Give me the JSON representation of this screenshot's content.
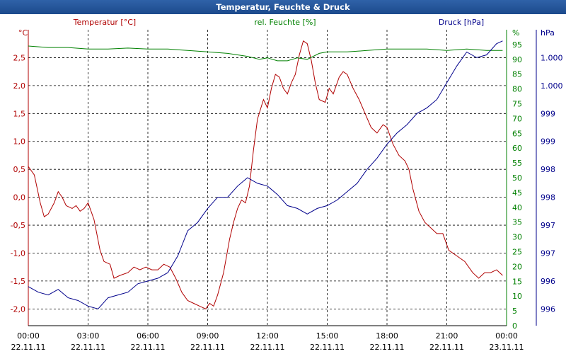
{
  "chart_data": {
    "type": "line",
    "title": "Temperatur, Feuchte & Druck",
    "axes": {
      "temperature": {
        "unit_label": "°C",
        "legend": "Temperatur [°C]",
        "range": [
          -2.3,
          3.0
        ],
        "ticks": [
          "2,5",
          "2,0",
          "1,5",
          "1,0",
          "0,5",
          "0,0",
          "-0,5",
          "-1,0",
          "-1,5",
          "-2,0"
        ],
        "tick_values": [
          2.5,
          2.0,
          1.5,
          1.0,
          0.5,
          0.0,
          -0.5,
          -1.0,
          -1.5,
          -2.0
        ]
      },
      "humidity": {
        "unit_label": "%",
        "legend": "rel. Feuchte [%]",
        "range": [
          0,
          100
        ],
        "ticks": [
          "95",
          "90",
          "85",
          "80",
          "75",
          "70",
          "65",
          "60",
          "55",
          "50",
          "45",
          "40",
          "35",
          "30",
          "25",
          "20",
          "15",
          "10",
          "5",
          "0"
        ],
        "tick_values": [
          95,
          90,
          85,
          80,
          75,
          70,
          65,
          60,
          55,
          50,
          45,
          40,
          35,
          30,
          25,
          20,
          15,
          10,
          5,
          0
        ]
      },
      "pressure": {
        "unit_label": "hPa",
        "legend": "Druck [hPa]",
        "ticks": [
          "1.000",
          "1.000",
          "999",
          "999",
          "998",
          "998",
          "997",
          "997",
          "996",
          "996"
        ]
      }
    },
    "x_ticks": [
      {
        "time": "00:00",
        "date": "22.11.11"
      },
      {
        "time": "03:00",
        "date": "22.11.11"
      },
      {
        "time": "06:00",
        "date": "22.11.11"
      },
      {
        "time": "09:00",
        "date": "22.11.11"
      },
      {
        "time": "12:00",
        "date": "22.11.11"
      },
      {
        "time": "15:00",
        "date": "22.11.11"
      },
      {
        "time": "18:00",
        "date": "22.11.11"
      },
      {
        "time": "21:00",
        "date": "22.11.11"
      },
      {
        "time": "00:00",
        "date": "23.11.11"
      }
    ],
    "x_range_hours": [
      0,
      24
    ],
    "grid": true,
    "series": [
      {
        "name": "Temperatur [°C]",
        "axis": "temperature",
        "color": "#b00000",
        "points": [
          [
            0,
            0.55
          ],
          [
            0.3,
            0.4
          ],
          [
            0.6,
            -0.1
          ],
          [
            0.8,
            -0.35
          ],
          [
            1,
            -0.3
          ],
          [
            1.3,
            -0.1
          ],
          [
            1.5,
            0.1
          ],
          [
            1.7,
            0
          ],
          [
            1.9,
            -0.15
          ],
          [
            2.2,
            -0.2
          ],
          [
            2.4,
            -0.15
          ],
          [
            2.6,
            -0.25
          ],
          [
            2.8,
            -0.2
          ],
          [
            3,
            -0.1
          ],
          [
            3.3,
            -0.4
          ],
          [
            3.6,
            -0.95
          ],
          [
            3.8,
            -1.15
          ],
          [
            4.1,
            -1.2
          ],
          [
            4.3,
            -1.45
          ],
          [
            4.6,
            -1.4
          ],
          [
            5,
            -1.35
          ],
          [
            5.3,
            -1.25
          ],
          [
            5.6,
            -1.3
          ],
          [
            5.9,
            -1.25
          ],
          [
            6.2,
            -1.3
          ],
          [
            6.5,
            -1.3
          ],
          [
            6.8,
            -1.2
          ],
          [
            7.1,
            -1.25
          ],
          [
            7.4,
            -1.45
          ],
          [
            7.7,
            -1.7
          ],
          [
            8,
            -1.85
          ],
          [
            8.3,
            -1.9
          ],
          [
            8.6,
            -1.95
          ],
          [
            8.9,
            -2.0
          ],
          [
            9.1,
            -1.9
          ],
          [
            9.3,
            -1.95
          ],
          [
            9.5,
            -1.75
          ],
          [
            9.8,
            -1.35
          ],
          [
            10.1,
            -0.75
          ],
          [
            10.3,
            -0.45
          ],
          [
            10.5,
            -0.2
          ],
          [
            10.7,
            -0.05
          ],
          [
            10.9,
            -0.1
          ],
          [
            11.1,
            0.2
          ],
          [
            11.3,
            0.85
          ],
          [
            11.5,
            1.4
          ],
          [
            11.8,
            1.75
          ],
          [
            12,
            1.6
          ],
          [
            12.2,
            1.95
          ],
          [
            12.4,
            2.2
          ],
          [
            12.6,
            2.15
          ],
          [
            12.8,
            1.95
          ],
          [
            13,
            1.85
          ],
          [
            13.2,
            2.05
          ],
          [
            13.4,
            2.2
          ],
          [
            13.6,
            2.55
          ],
          [
            13.8,
            2.8
          ],
          [
            14,
            2.75
          ],
          [
            14.2,
            2.45
          ],
          [
            14.4,
            2.05
          ],
          [
            14.6,
            1.75
          ],
          [
            14.9,
            1.7
          ],
          [
            15.1,
            1.95
          ],
          [
            15.3,
            1.85
          ],
          [
            15.6,
            2.15
          ],
          [
            15.8,
            2.25
          ],
          [
            16,
            2.2
          ],
          [
            16.3,
            1.95
          ],
          [
            16.6,
            1.75
          ],
          [
            16.9,
            1.5
          ],
          [
            17.2,
            1.25
          ],
          [
            17.5,
            1.15
          ],
          [
            17.8,
            1.3
          ],
          [
            18,
            1.25
          ],
          [
            18.3,
            0.95
          ],
          [
            18.6,
            0.75
          ],
          [
            18.9,
            0.65
          ],
          [
            19.1,
            0.5
          ],
          [
            19.3,
            0.15
          ],
          [
            19.6,
            -0.25
          ],
          [
            19.9,
            -0.45
          ],
          [
            20.2,
            -0.55
          ],
          [
            20.5,
            -0.65
          ],
          [
            20.8,
            -0.65
          ],
          [
            21.1,
            -0.95
          ],
          [
            21.5,
            -1.05
          ],
          [
            21.9,
            -1.15
          ],
          [
            22.3,
            -1.35
          ],
          [
            22.6,
            -1.45
          ],
          [
            22.9,
            -1.35
          ],
          [
            23.2,
            -1.35
          ],
          [
            23.5,
            -1.3
          ],
          [
            23.8,
            -1.4
          ]
        ]
      },
      {
        "name": "rel. Feuchte [%]",
        "axis": "humidity",
        "color": "#008000",
        "points": [
          [
            0,
            94.5
          ],
          [
            1,
            94
          ],
          [
            2,
            94
          ],
          [
            3,
            93.5
          ],
          [
            4,
            93.5
          ],
          [
            5,
            93.8
          ],
          [
            6,
            93.5
          ],
          [
            7,
            93.5
          ],
          [
            8,
            93
          ],
          [
            9,
            92.5
          ],
          [
            10,
            92
          ],
          [
            11,
            91
          ],
          [
            11.6,
            90
          ],
          [
            12,
            90.5
          ],
          [
            12.5,
            89.5
          ],
          [
            13,
            89.5
          ],
          [
            13.5,
            90.5
          ],
          [
            14,
            90
          ],
          [
            14.6,
            92
          ],
          [
            15,
            92.5
          ],
          [
            16,
            92.5
          ],
          [
            17,
            93
          ],
          [
            18,
            93.5
          ],
          [
            19,
            93.5
          ],
          [
            20,
            93.5
          ],
          [
            21,
            93
          ],
          [
            22,
            93.5
          ],
          [
            23,
            93
          ],
          [
            23.8,
            93
          ]
        ]
      },
      {
        "name": "Druck [hPa]",
        "axis": "pressure",
        "color": "#00008b",
        "points": [
          [
            0,
            -1.6
          ],
          [
            0.5,
            -1.7
          ],
          [
            1,
            -1.75
          ],
          [
            1.5,
            -1.65
          ],
          [
            2,
            -1.8
          ],
          [
            2.5,
            -1.85
          ],
          [
            3,
            -1.95
          ],
          [
            3.5,
            -2.0
          ],
          [
            4,
            -1.8
          ],
          [
            4.5,
            -1.75
          ],
          [
            5,
            -1.7
          ],
          [
            5.5,
            -1.55
          ],
          [
            6,
            -1.5
          ],
          [
            6.5,
            -1.45
          ],
          [
            7,
            -1.35
          ],
          [
            7.5,
            -1.05
          ],
          [
            8,
            -0.6
          ],
          [
            8.5,
            -0.45
          ],
          [
            9,
            -0.2
          ],
          [
            9.5,
            0.0
          ],
          [
            10,
            0.0
          ],
          [
            10.5,
            0.2
          ],
          [
            11,
            0.35
          ],
          [
            11.5,
            0.25
          ],
          [
            12,
            0.2
          ],
          [
            12.5,
            0.05
          ],
          [
            13,
            -0.15
          ],
          [
            13.5,
            -0.2
          ],
          [
            14,
            -0.3
          ],
          [
            14.5,
            -0.2
          ],
          [
            15,
            -0.15
          ],
          [
            15.5,
            -0.05
          ],
          [
            16,
            0.1
          ],
          [
            16.5,
            0.25
          ],
          [
            17,
            0.5
          ],
          [
            17.5,
            0.7
          ],
          [
            18,
            0.95
          ],
          [
            18.5,
            1.15
          ],
          [
            19,
            1.3
          ],
          [
            19.5,
            1.5
          ],
          [
            20,
            1.6
          ],
          [
            20.5,
            1.75
          ],
          [
            21,
            2.05
          ],
          [
            21.5,
            2.35
          ],
          [
            22,
            2.6
          ],
          [
            22.5,
            2.5
          ],
          [
            23,
            2.55
          ],
          [
            23.5,
            2.75
          ],
          [
            23.8,
            2.8
          ]
        ]
      }
    ]
  }
}
